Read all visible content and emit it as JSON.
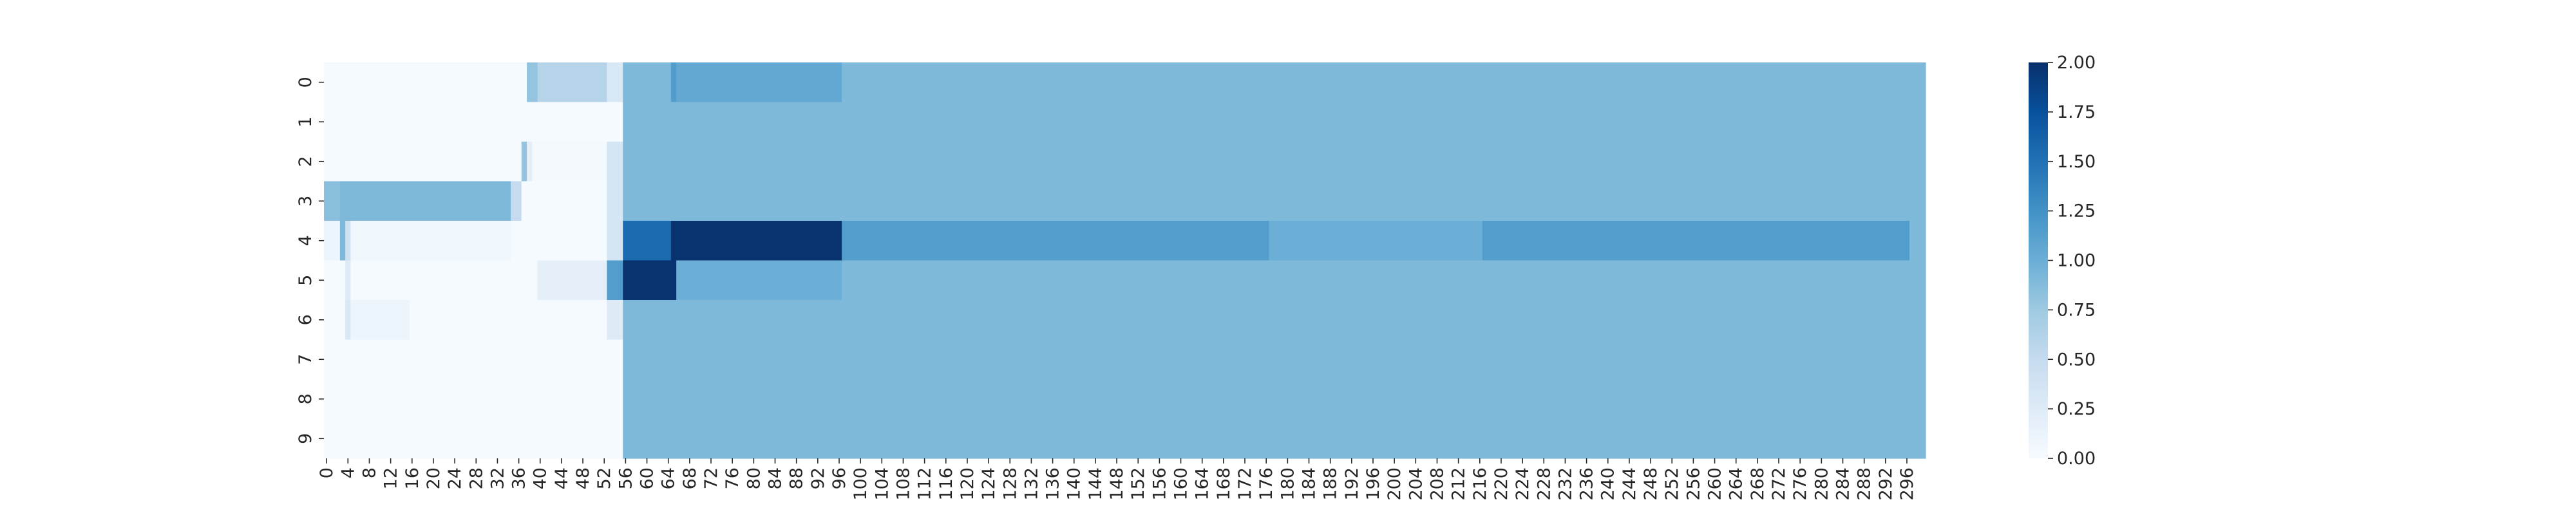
{
  "chart_data": {
    "type": "heatmap",
    "title": "",
    "xlabel": "",
    "ylabel": "",
    "rows": [
      "0",
      "1",
      "2",
      "3",
      "4",
      "5",
      "6",
      "7",
      "8",
      "9"
    ],
    "n_cols": 300,
    "x_tick_step": 4,
    "x_tick_labels": [
      "0",
      "4",
      "8",
      "12",
      "16",
      "20",
      "24",
      "28",
      "32",
      "36",
      "40",
      "44",
      "48",
      "52",
      "56",
      "60",
      "64",
      "68",
      "72",
      "76",
      "80",
      "84",
      "88",
      "92",
      "96",
      "100",
      "104",
      "108",
      "112",
      "116",
      "120",
      "124",
      "128",
      "132",
      "136",
      "140",
      "144",
      "148",
      "152",
      "156",
      "160",
      "164",
      "168",
      "172",
      "176",
      "180",
      "184",
      "188",
      "192",
      "196",
      "200",
      "204",
      "208",
      "212",
      "216",
      "220",
      "224",
      "228",
      "232",
      "236",
      "240",
      "244",
      "248",
      "252",
      "256",
      "260",
      "264",
      "268",
      "272",
      "276",
      "280",
      "284",
      "288",
      "292",
      "296"
    ],
    "colormap": "Blues",
    "colorbar": {
      "range": [
        0,
        2
      ],
      "tick_values": [
        0,
        0.25,
        0.5,
        0.75,
        1,
        1.25,
        1.5,
        1.75,
        2
      ],
      "tick_labels": [
        "0.00",
        "0.25",
        "0.50",
        "0.75",
        "1.00",
        "1.25",
        "1.50",
        "1.75",
        "2.00"
      ]
    },
    "background_value": 0.02,
    "segments": [
      {
        "row": 0,
        "x": [
          0,
          38
        ],
        "value": 0.02
      },
      {
        "row": 0,
        "x": [
          38,
          40
        ],
        "value": 0.8
      },
      {
        "row": 0,
        "x": [
          40,
          53
        ],
        "value": 0.6
      },
      {
        "row": 0,
        "x": [
          53,
          56
        ],
        "value": 0.3
      },
      {
        "row": 0,
        "x": [
          56,
          65
        ],
        "value": 0.9
      },
      {
        "row": 0,
        "x": [
          65,
          66
        ],
        "value": 1.15
      },
      {
        "row": 0,
        "x": [
          66,
          97
        ],
        "value": 1.05
      },
      {
        "row": 0,
        "x": [
          97,
          300
        ],
        "value": 0.9
      },
      {
        "row": 1,
        "x": [
          0,
          56
        ],
        "value": 0.02
      },
      {
        "row": 1,
        "x": [
          56,
          300
        ],
        "value": 0.9
      },
      {
        "row": 2,
        "x": [
          0,
          37
        ],
        "value": 0.02
      },
      {
        "row": 2,
        "x": [
          37,
          38
        ],
        "value": 0.8
      },
      {
        "row": 2,
        "x": [
          38,
          39
        ],
        "value": 0.2
      },
      {
        "row": 2,
        "x": [
          39,
          53
        ],
        "value": 0.03
      },
      {
        "row": 2,
        "x": [
          53,
          56
        ],
        "value": 0.35
      },
      {
        "row": 2,
        "x": [
          56,
          300
        ],
        "value": 0.9
      },
      {
        "row": 3,
        "x": [
          0,
          3
        ],
        "value": 0.85
      },
      {
        "row": 3,
        "x": [
          3,
          35
        ],
        "value": 0.9
      },
      {
        "row": 3,
        "x": [
          35,
          37
        ],
        "value": 0.5
      },
      {
        "row": 3,
        "x": [
          37,
          53
        ],
        "value": 0.02
      },
      {
        "row": 3,
        "x": [
          53,
          56
        ],
        "value": 0.35
      },
      {
        "row": 3,
        "x": [
          56,
          300
        ],
        "value": 0.9
      },
      {
        "row": 4,
        "x": [
          0,
          3
        ],
        "value": 0.1
      },
      {
        "row": 4,
        "x": [
          3,
          4
        ],
        "value": 0.9
      },
      {
        "row": 4,
        "x": [
          4,
          5
        ],
        "value": 0.4
      },
      {
        "row": 4,
        "x": [
          5,
          35
        ],
        "value": 0.08
      },
      {
        "row": 4,
        "x": [
          35,
          53
        ],
        "value": 0.02
      },
      {
        "row": 4,
        "x": [
          53,
          56
        ],
        "value": 0.35
      },
      {
        "row": 4,
        "x": [
          56,
          65
        ],
        "value": 1.55
      },
      {
        "row": 4,
        "x": [
          65,
          97
        ],
        "value": 1.98
      },
      {
        "row": 4,
        "x": [
          97,
          177
        ],
        "value": 1.15
      },
      {
        "row": 4,
        "x": [
          177,
          217
        ],
        "value": 1.0
      },
      {
        "row": 4,
        "x": [
          217,
          297
        ],
        "value": 1.15
      },
      {
        "row": 4,
        "x": [
          297,
          300
        ],
        "value": 0.9
      },
      {
        "row": 5,
        "x": [
          0,
          4
        ],
        "value": 0.02
      },
      {
        "row": 5,
        "x": [
          4,
          5
        ],
        "value": 0.25
      },
      {
        "row": 5,
        "x": [
          5,
          40
        ],
        "value": 0.02
      },
      {
        "row": 5,
        "x": [
          40,
          53
        ],
        "value": 0.18
      },
      {
        "row": 5,
        "x": [
          53,
          56
        ],
        "value": 1.15
      },
      {
        "row": 5,
        "x": [
          56,
          66
        ],
        "value": 1.98
      },
      {
        "row": 5,
        "x": [
          66,
          97
        ],
        "value": 1.0
      },
      {
        "row": 5,
        "x": [
          97,
          300
        ],
        "value": 0.9
      },
      {
        "row": 6,
        "x": [
          0,
          4
        ],
        "value": 0.02
      },
      {
        "row": 6,
        "x": [
          4,
          5
        ],
        "value": 0.3
      },
      {
        "row": 6,
        "x": [
          5,
          16
        ],
        "value": 0.1
      },
      {
        "row": 6,
        "x": [
          16,
          53
        ],
        "value": 0.02
      },
      {
        "row": 6,
        "x": [
          53,
          56
        ],
        "value": 0.25
      },
      {
        "row": 6,
        "x": [
          56,
          300
        ],
        "value": 0.9
      },
      {
        "row": 7,
        "x": [
          0,
          56
        ],
        "value": 0.02
      },
      {
        "row": 7,
        "x": [
          56,
          300
        ],
        "value": 0.9
      },
      {
        "row": 8,
        "x": [
          0,
          56
        ],
        "value": 0.02
      },
      {
        "row": 8,
        "x": [
          56,
          300
        ],
        "value": 0.9
      },
      {
        "row": 9,
        "x": [
          0,
          56
        ],
        "value": 0.02
      },
      {
        "row": 9,
        "x": [
          56,
          300
        ],
        "value": 0.9
      }
    ]
  }
}
